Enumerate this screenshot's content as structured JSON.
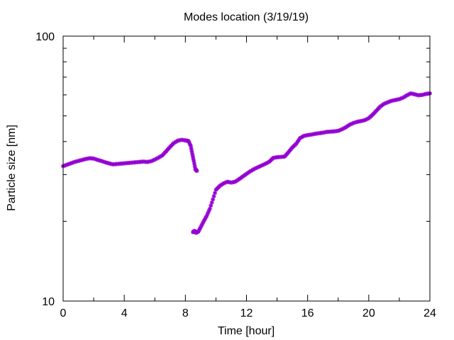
{
  "chart_data": {
    "type": "scatter",
    "title": "Modes location (3/19/19)",
    "xlabel": "Time [hour]",
    "ylabel": "Particle size [nm]",
    "xlim": [
      0,
      24
    ],
    "ylim": [
      10,
      100
    ],
    "yscale": "log",
    "grid": false,
    "legend": "none",
    "x_ticks": [
      "0",
      "4",
      "8",
      "12",
      "16",
      "20",
      "24"
    ],
    "y_ticks": [
      "10",
      "100"
    ],
    "marker_color": "#9400D3",
    "marker": "asterisk",
    "series": [
      {
        "x": [
          0.0,
          0.25,
          0.5,
          0.75,
          1.0,
          1.25,
          1.5,
          1.75,
          2.0,
          2.25,
          2.5,
          2.75,
          3.0,
          3.25,
          3.5,
          3.75,
          4.0,
          4.25,
          4.5,
          4.75,
          5.0,
          5.25,
          5.5,
          5.75,
          6.0,
          6.25,
          6.5,
          6.75,
          7.0,
          7.25,
          7.5,
          7.75,
          8.0,
          8.2,
          8.35,
          8.45,
          8.55,
          8.65,
          8.75,
          8.5,
          8.6,
          8.7,
          8.85,
          9.0,
          9.2,
          9.4,
          9.6,
          9.8,
          10.0,
          10.25,
          10.5,
          10.75,
          11.0,
          11.25,
          11.5,
          11.75,
          12.0,
          12.25,
          12.5,
          12.75,
          13.0,
          13.25,
          13.5,
          13.75,
          14.0,
          14.25,
          14.5,
          14.75,
          15.0,
          15.25,
          15.5,
          15.75,
          16.0,
          16.25,
          16.5,
          16.75,
          17.0,
          17.25,
          17.5,
          17.75,
          18.0,
          18.25,
          18.5,
          18.75,
          19.0,
          19.25,
          19.5,
          19.75,
          20.0,
          20.25,
          20.5,
          20.75,
          21.0,
          21.25,
          21.5,
          21.75,
          22.0,
          22.25,
          22.5,
          22.75,
          23.0,
          23.25,
          23.5,
          23.75,
          24.0
        ],
        "y": [
          32.3,
          32.7,
          33.1,
          33.5,
          33.8,
          34.1,
          34.4,
          34.6,
          34.5,
          34.1,
          33.8,
          33.4,
          33.1,
          32.8,
          32.9,
          33.0,
          33.1,
          33.2,
          33.3,
          33.4,
          33.5,
          33.6,
          33.5,
          33.7,
          34.2,
          34.8,
          35.5,
          36.8,
          38.2,
          39.5,
          40.3,
          40.6,
          40.4,
          40.2,
          38.5,
          36.0,
          33.8,
          31.5,
          31.0,
          18.2,
          18.4,
          18.1,
          18.3,
          19.0,
          20.0,
          21.0,
          22.3,
          24.2,
          26.3,
          27.2,
          27.8,
          28.2,
          28.0,
          28.2,
          28.8,
          29.5,
          30.2,
          30.9,
          31.5,
          32.0,
          32.5,
          33.0,
          33.6,
          34.7,
          34.9,
          35.0,
          35.1,
          36.5,
          38.0,
          39.2,
          41.2,
          42.0,
          42.3,
          42.5,
          42.8,
          43.0,
          43.2,
          43.5,
          43.6,
          43.7,
          43.9,
          44.5,
          45.3,
          46.3,
          47.0,
          47.5,
          47.8,
          48.2,
          49.0,
          50.5,
          52.3,
          54.2,
          55.5,
          56.3,
          57.0,
          57.4,
          57.8,
          58.6,
          59.8,
          60.8,
          60.3,
          59.8,
          60.0,
          60.5,
          60.8
        ]
      }
    ]
  }
}
